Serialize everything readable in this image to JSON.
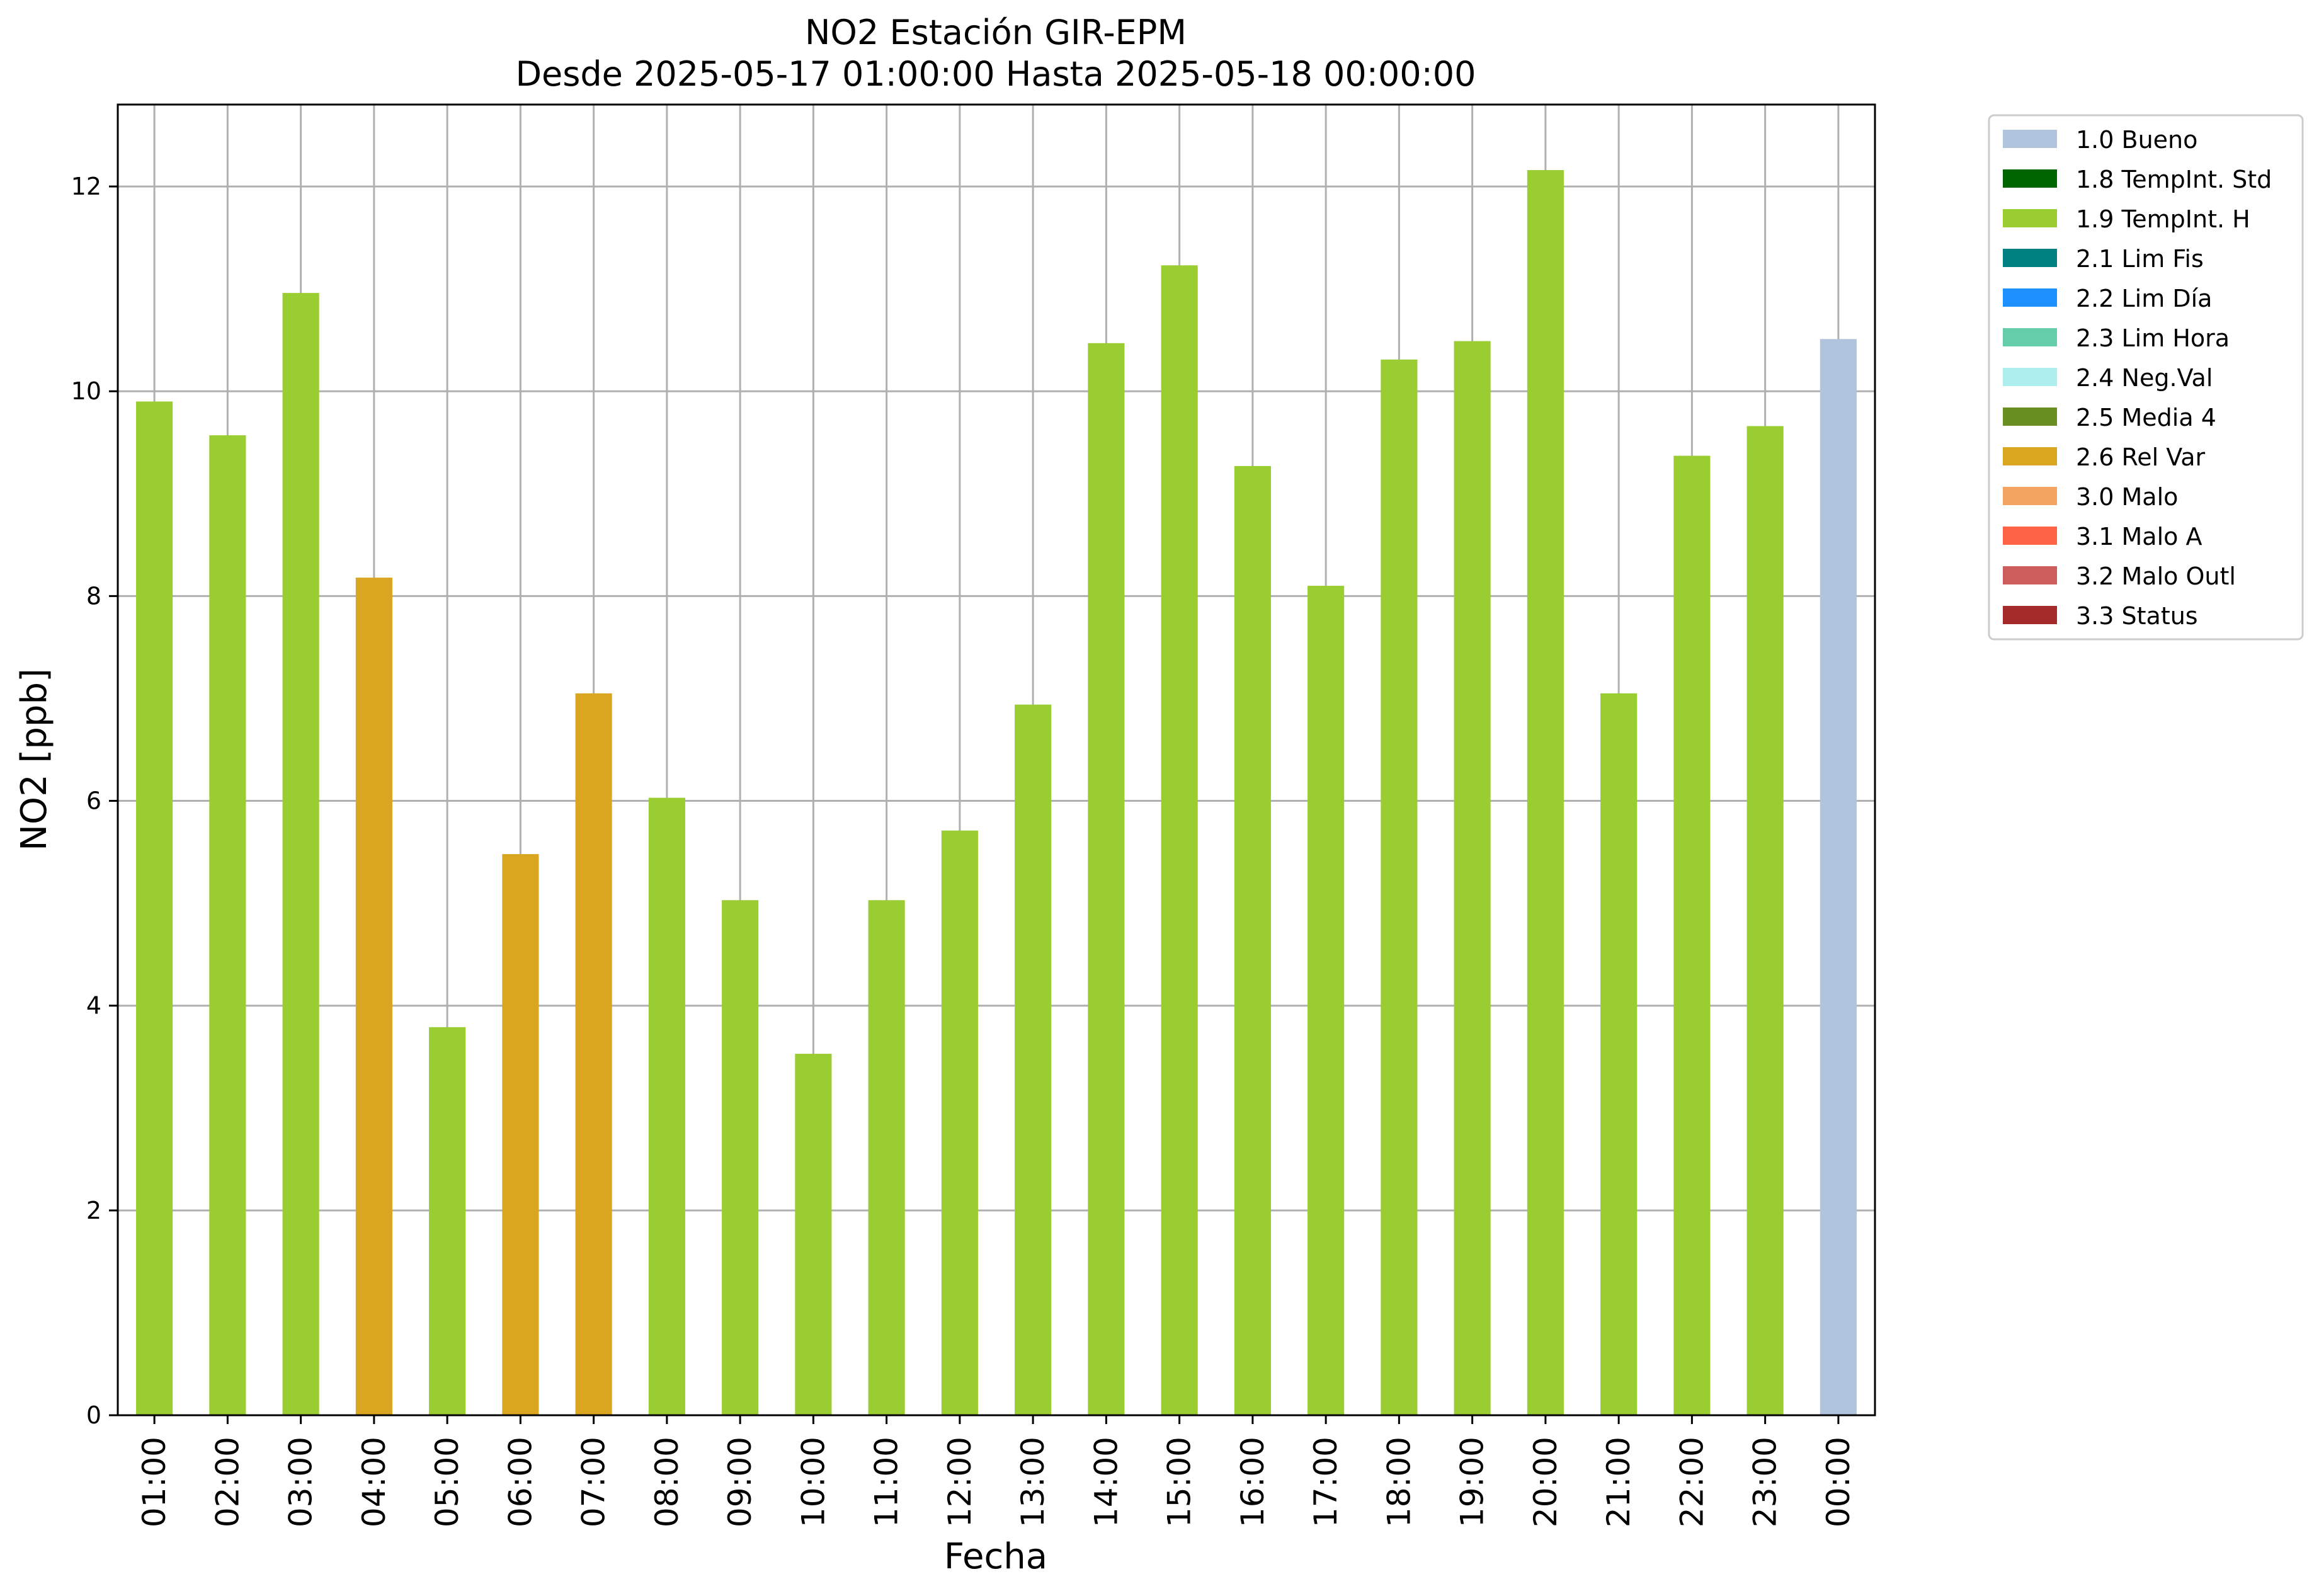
{
  "chart_data": {
    "type": "bar",
    "title": "NO2 Estación GIR-EPM",
    "subtitle": "Desde 2025-05-17 01:00:00 Hasta 2025-05-18 00:00:00",
    "xlabel": "Fecha",
    "ylabel": "NO2 [ppb]",
    "ylim": [
      0,
      12.8
    ],
    "yticks": [
      0,
      2,
      4,
      6,
      8,
      10,
      12
    ],
    "grid": true,
    "legend_position": "outside-top-right",
    "categories": [
      "01:00",
      "02:00",
      "03:00",
      "04:00",
      "05:00",
      "06:00",
      "07:00",
      "08:00",
      "09:00",
      "10:00",
      "11:00",
      "12:00",
      "13:00",
      "14:00",
      "15:00",
      "16:00",
      "17:00",
      "18:00",
      "19:00",
      "20:00",
      "21:00",
      "22:00",
      "23:00",
      "00:00"
    ],
    "values": [
      9.9,
      9.57,
      10.96,
      8.18,
      3.79,
      5.48,
      7.05,
      6.03,
      5.03,
      3.53,
      5.03,
      5.71,
      6.94,
      10.47,
      11.23,
      9.27,
      8.1,
      10.31,
      10.49,
      12.16,
      7.05,
      9.37,
      9.66,
      10.51
    ],
    "flags": [
      "1.9",
      "1.9",
      "1.9",
      "2.6",
      "1.9",
      "2.6",
      "2.6",
      "1.9",
      "1.9",
      "1.9",
      "1.9",
      "1.9",
      "1.9",
      "1.9",
      "1.9",
      "1.9",
      "1.9",
      "1.9",
      "1.9",
      "1.9",
      "1.9",
      "1.9",
      "1.9",
      "1.0"
    ],
    "legend": [
      {
        "code": "1.0",
        "label": "1.0 Bueno",
        "color": "#b0c4de"
      },
      {
        "code": "1.8",
        "label": "1.8 TempInt. Std",
        "color": "#006400"
      },
      {
        "code": "1.9",
        "label": "1.9 TempInt. H",
        "color": "#9acd32"
      },
      {
        "code": "2.1",
        "label": "2.1 Lim Fis",
        "color": "#008080"
      },
      {
        "code": "2.2",
        "label": "2.2 Lim Día",
        "color": "#1e90ff"
      },
      {
        "code": "2.3",
        "label": "2.3 Lim Hora",
        "color": "#66cdaa"
      },
      {
        "code": "2.4",
        "label": "2.4 Neg.Val",
        "color": "#afeeee"
      },
      {
        "code": "2.5",
        "label": "2.5 Media 4",
        "color": "#6b8e23"
      },
      {
        "code": "2.6",
        "label": "2.6 Rel Var",
        "color": "#daa520"
      },
      {
        "code": "3.0",
        "label": "3.0 Malo",
        "color": "#f4a460"
      },
      {
        "code": "3.1",
        "label": "3.1 Malo A",
        "color": "#ff6347"
      },
      {
        "code": "3.2",
        "label": "3.2 Malo Outl",
        "color": "#cd5c5c"
      },
      {
        "code": "3.3",
        "label": "3.3 Status",
        "color": "#a52a2a"
      }
    ]
  }
}
